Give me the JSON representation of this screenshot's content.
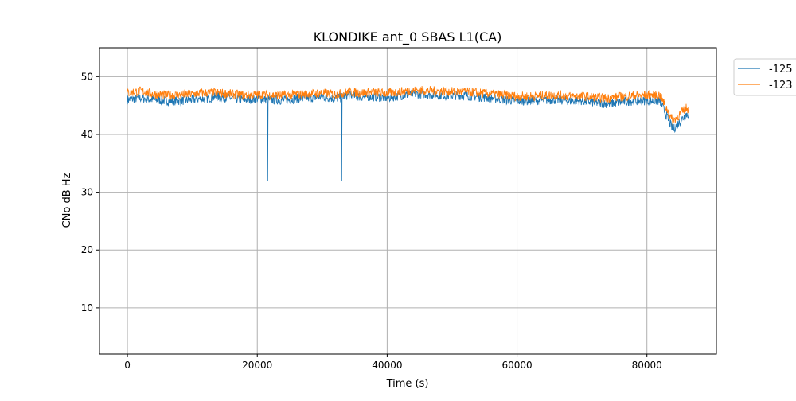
{
  "chart_data": {
    "type": "line",
    "title": "KLONDIKE ant_0 SBAS L1(CA)",
    "xlabel": "Time (s)",
    "ylabel": "CNo dB Hz",
    "xlim": [
      -4300,
      90700
    ],
    "ylim": [
      2,
      55
    ],
    "xticks": [
      0,
      20000,
      40000,
      60000,
      80000
    ],
    "xtick_labels": [
      "0",
      "20000",
      "40000",
      "60000",
      "80000"
    ],
    "yticks": [
      10,
      20,
      30,
      40,
      50
    ],
    "ytick_labels": [
      "10",
      "20",
      "30",
      "40",
      "50"
    ],
    "grid": true,
    "legend_position": "outside-top-right",
    "x_start": 0,
    "x_step": 2000,
    "series": [
      {
        "name": "-125",
        "color": "#1f77b4",
        "values": [
          46,
          46.3,
          46,
          45.8,
          45.8,
          46,
          46.2,
          46.5,
          46.3,
          46,
          46.2,
          46,
          45.9,
          46.2,
          46.3,
          46.5,
          46.2,
          46.8,
          46.5,
          46.5,
          46.3,
          46.7,
          47,
          47,
          46.8,
          46.7,
          46.8,
          46.5,
          46.3,
          46,
          45.8,
          45.8,
          45.9,
          46,
          45.8,
          45.8,
          45.5,
          45.3,
          45.6,
          45.8,
          45.8,
          45.8,
          40.8,
          43.5
        ],
        "dips": [
          {
            "x": 21600,
            "y": 32
          },
          {
            "x": 33000,
            "y": 32
          }
        ]
      },
      {
        "name": "-123",
        "color": "#ff7f0e",
        "values": [
          47.2,
          47.5,
          47,
          46.8,
          46.8,
          47,
          47.2,
          47.2,
          47,
          46.8,
          46.9,
          46.8,
          46.7,
          46.9,
          47,
          47.2,
          46.9,
          47.3,
          47.2,
          47.3,
          47.1,
          47.4,
          47.6,
          47.6,
          47.5,
          47.4,
          47.4,
          47.2,
          47,
          46.8,
          46.6,
          46.6,
          46.7,
          46.8,
          46.6,
          46.6,
          46.4,
          46.3,
          46.5,
          46.7,
          46.8,
          46.8,
          42.3,
          44.5
        ],
        "dips": []
      }
    ]
  }
}
